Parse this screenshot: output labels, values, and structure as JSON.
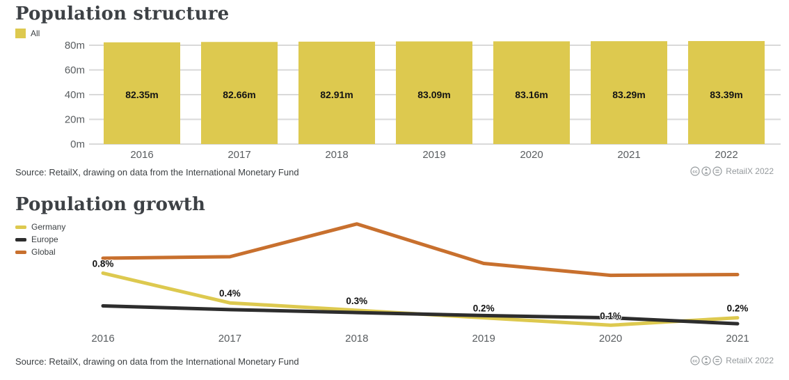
{
  "charts": [
    {
      "title": "Population structure",
      "legend": [
        {
          "label": "All",
          "color": "#ddc94f"
        }
      ],
      "source": "Source: RetailX, drawing on data from the International Monetary Fund",
      "badge": {
        "icons": [
          "cc-icon",
          "attribution-icon",
          "equals-icon"
        ],
        "text": "RetailX 2022"
      },
      "chart_data": {
        "type": "bar",
        "categories": [
          "2016",
          "2017",
          "2018",
          "2019",
          "2020",
          "2021",
          "2022"
        ],
        "values": [
          82.35,
          82.66,
          82.91,
          83.09,
          83.16,
          83.29,
          83.39
        ],
        "value_labels": [
          "82.35m",
          "82.66m",
          "82.91m",
          "83.09m",
          "83.16m",
          "83.29m",
          "83.39m"
        ],
        "yticks": [
          {
            "value": 0,
            "label": "0m"
          },
          {
            "value": 20,
            "label": "20m"
          },
          {
            "value": 40,
            "label": "40m"
          },
          {
            "value": 60,
            "label": "60m"
          },
          {
            "value": 80,
            "label": "80m"
          }
        ],
        "ylim": [
          0,
          84
        ],
        "bar_color": "#ddc94f",
        "grid": true,
        "legend_position": "top-left",
        "xlabel": "",
        "ylabel": ""
      }
    },
    {
      "title": "Population growth",
      "legend": [
        {
          "label": "Germany",
          "color": "#ddc94f"
        },
        {
          "label": "Europe",
          "color": "#2d2d2d"
        },
        {
          "label": "Global",
          "color": "#c8702e"
        }
      ],
      "source": "Source: RetailX, drawing on data from the International Monetary Fund",
      "badge": {
        "icons": [
          "cc-icon",
          "attribution-icon",
          "equals-icon"
        ],
        "text": "RetailX 2022"
      },
      "chart_data": {
        "type": "line",
        "x": [
          "2016",
          "2017",
          "2018",
          "2019",
          "2020",
          "2021"
        ],
        "series": [
          {
            "name": "Germany",
            "color": "#ddc94f",
            "values": [
              0.8,
              0.4,
              0.3,
              0.2,
              0.1,
              0.2
            ],
            "data_labels": [
              "0.8%",
              "0.4%",
              "0.3%",
              "0.2%",
              "0.1%",
              "0.2%"
            ]
          },
          {
            "name": "Europe",
            "color": "#2d2d2d",
            "values": [
              0.36,
              0.31,
              0.27,
              0.23,
              0.2,
              0.12
            ]
          },
          {
            "name": "Global",
            "color": "#c8702e",
            "values": [
              1.0,
              1.02,
              1.46,
              0.93,
              0.77,
              0.78
            ]
          }
        ],
        "ylim": [
          0,
          1.6
        ],
        "grid": false,
        "legend_position": "top-left",
        "xlabel": "",
        "ylabel": ""
      }
    }
  ]
}
